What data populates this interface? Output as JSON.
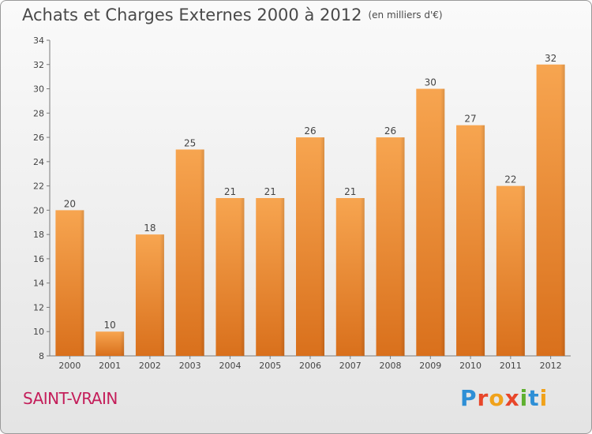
{
  "title": "Achats et Charges Externes 2000 à 2012",
  "unit": "(en milliers d'€)",
  "city": "SAINT-VRAIN",
  "logo": {
    "text": "Proxiti",
    "letters": [
      {
        "ch": "P",
        "color": "#2e8fd6"
      },
      {
        "ch": "r",
        "color": "#e8462a"
      },
      {
        "ch": "o",
        "color": "#f0a21b"
      },
      {
        "ch": "x",
        "color": "#e8462a"
      },
      {
        "ch": "i",
        "color": "#5fb030"
      },
      {
        "ch": "t",
        "color": "#2e8fd6"
      },
      {
        "ch": "i",
        "color": "#f0a21b"
      }
    ]
  },
  "chart_data": {
    "type": "bar",
    "categories": [
      "2000",
      "2001",
      "2002",
      "2003",
      "2004",
      "2005",
      "2006",
      "2007",
      "2008",
      "2009",
      "2010",
      "2011",
      "2012"
    ],
    "values": [
      20,
      10,
      18,
      25,
      21,
      21,
      26,
      21,
      26,
      30,
      27,
      22,
      32
    ],
    "ylim": [
      8,
      34
    ],
    "yticks": [
      8,
      10,
      12,
      14,
      16,
      18,
      20,
      22,
      24,
      26,
      28,
      30,
      32,
      34
    ],
    "grid": false,
    "bar_color_light": "#f7a550",
    "bar_color_dark": "#d9701c",
    "xlabel": "",
    "ylabel": ""
  }
}
